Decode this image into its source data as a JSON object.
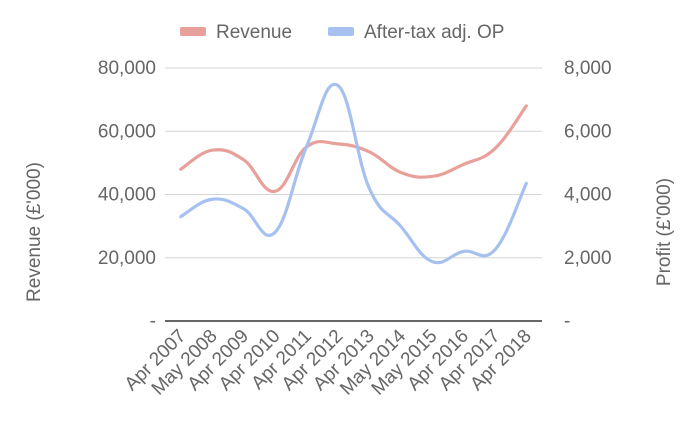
{
  "chart_data": {
    "type": "line",
    "title": "",
    "categories": [
      "Apr 2007",
      "May 2008",
      "Apr 2009",
      "Apr 2010",
      "Apr 2011",
      "Apr 2012",
      "Apr 2013",
      "May 2014",
      "May 2015",
      "Apr 2016",
      "Apr 2017",
      "Apr 2018"
    ],
    "y_left": {
      "label": "Revenue (£'000)",
      "range": [
        0,
        80000
      ],
      "ticks": [
        0,
        20000,
        40000,
        60000,
        80000
      ],
      "tick_labels": [
        "-",
        "20,000",
        "40,000",
        "60,000",
        "80,000"
      ]
    },
    "y_right": {
      "label": "Profit (£'000)",
      "range": [
        0,
        8000
      ],
      "ticks": [
        0,
        2000,
        4000,
        6000,
        8000
      ],
      "tick_labels": [
        "-",
        "2,000",
        "4,000",
        "6,000",
        "8,000"
      ]
    },
    "series": [
      {
        "name": "Revenue",
        "axis": "left",
        "color": "#e8a09a",
        "values": [
          48000,
          54000,
          51000,
          41000,
          55000,
          56000,
          53500,
          47000,
          45700,
          49500,
          54500,
          68000
        ]
      },
      {
        "name": "After-tax adj. OP",
        "axis": "right",
        "color": "#a6c1f0",
        "values": [
          3300,
          3850,
          3550,
          2800,
          5500,
          7450,
          4200,
          3000,
          1880,
          2200,
          2250,
          4350
        ]
      }
    ],
    "grid": true,
    "legend_position": "top"
  }
}
